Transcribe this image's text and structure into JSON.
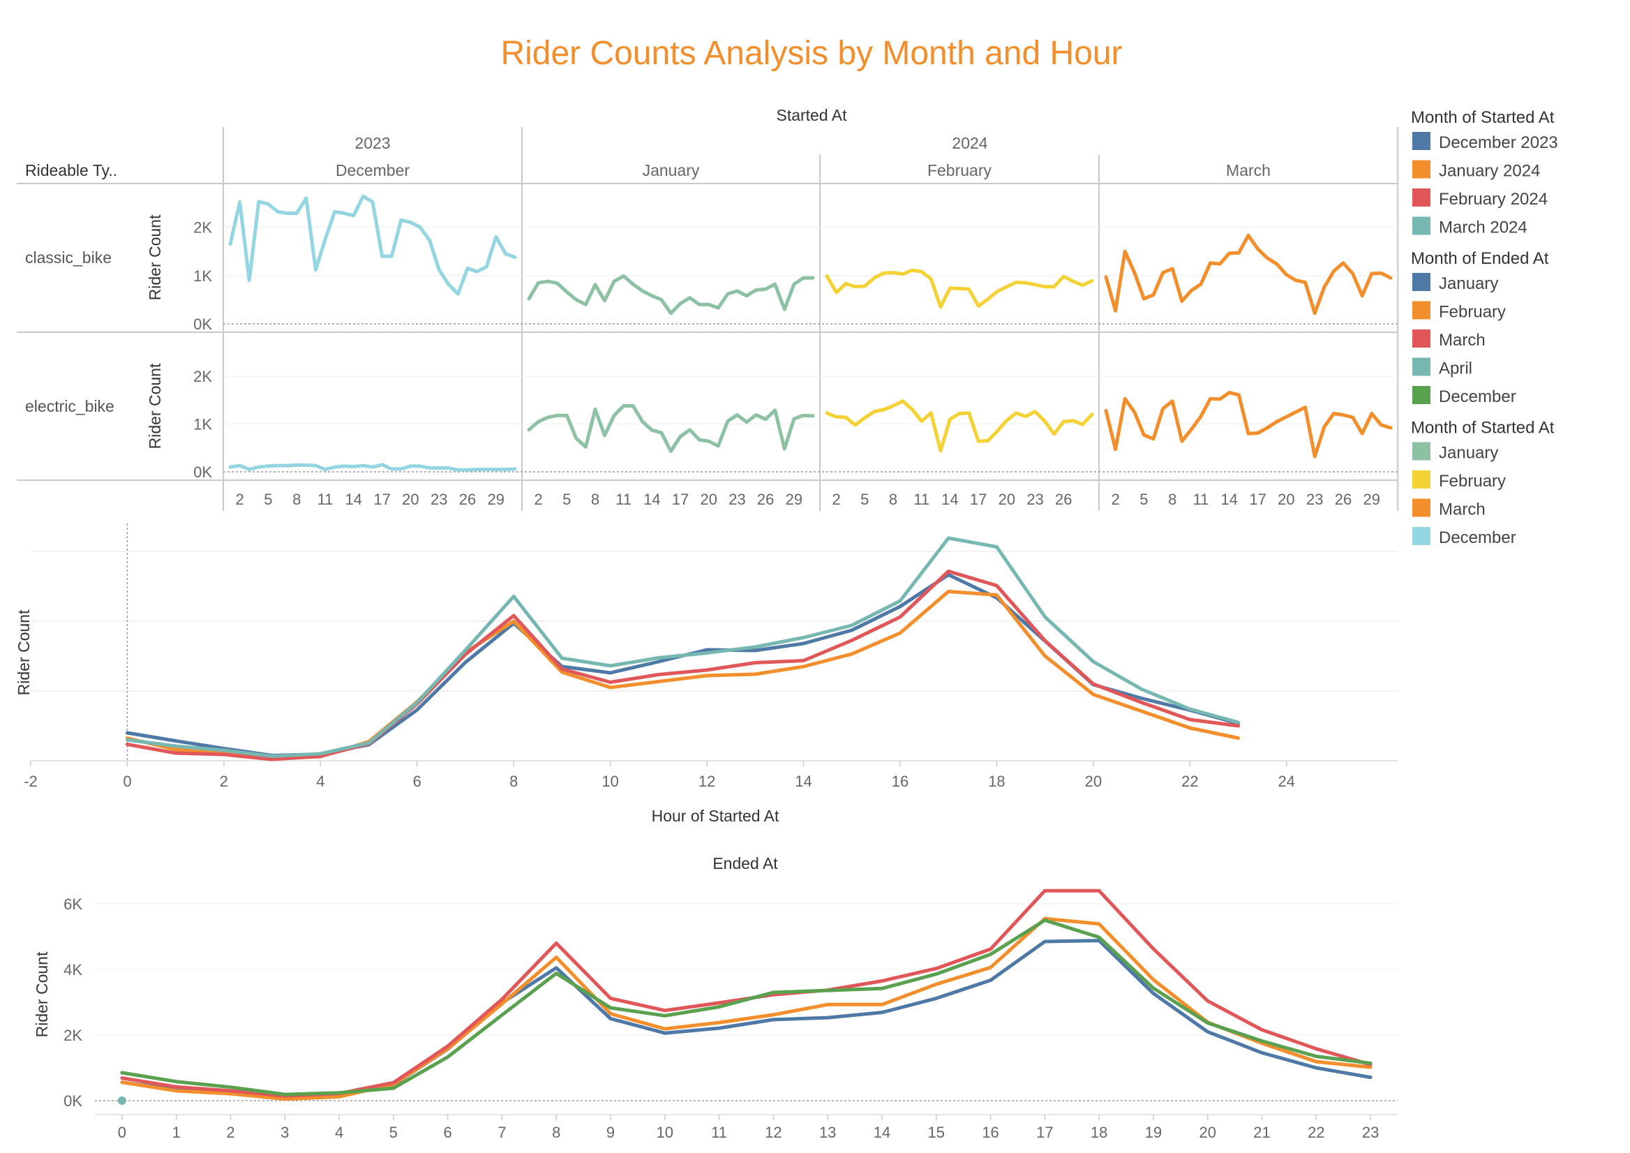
{
  "title": "Rider Counts Analysis by Month and Hour",
  "colors": {
    "title": "#F28E2B",
    "blue": "#4E79A7",
    "orange": "#F28E2B",
    "red": "#E15759",
    "teal": "#76B7B2",
    "green": "#59A14F",
    "sage": "#8CC1A3",
    "yellow": "#F4D236",
    "lightblue": "#93D5E0"
  },
  "legends": [
    {
      "title": "Month of Started At",
      "items": [
        {
          "label": "December 2023",
          "color": "#4E79A7"
        },
        {
          "label": "January 2024",
          "color": "#F28E2B"
        },
        {
          "label": "February 2024",
          "color": "#E15759"
        },
        {
          "label": "March 2024",
          "color": "#76B7B2"
        }
      ]
    },
    {
      "title": "Month of Ended At",
      "items": [
        {
          "label": "January",
          "color": "#4E79A7"
        },
        {
          "label": "February",
          "color": "#F28E2B"
        },
        {
          "label": "March",
          "color": "#E15759"
        },
        {
          "label": "April",
          "color": "#76B7B2"
        },
        {
          "label": "December",
          "color": "#59A14F"
        }
      ]
    },
    {
      "title": "Month of Started At",
      "items": [
        {
          "label": "January",
          "color": "#8CC1A3"
        },
        {
          "label": "February",
          "color": "#F4D236"
        },
        {
          "label": "March",
          "color": "#F28E2B"
        },
        {
          "label": "December",
          "color": "#93D5E0"
        }
      ]
    }
  ],
  "chart_data": [
    {
      "type": "line",
      "title": "Started At",
      "row_header": "Rideable Ty..",
      "ylabel": "Rider Count",
      "ylim": [
        0,
        2600
      ],
      "yticks": [
        {
          "v": 0,
          "label": "0K"
        },
        {
          "v": 1000,
          "label": "1K"
        },
        {
          "v": 2000,
          "label": "2K"
        }
      ],
      "years": [
        {
          "label": "2023",
          "panels": [
            "December"
          ]
        },
        {
          "label": "2024",
          "panels": [
            "January",
            "February",
            "March"
          ]
        }
      ],
      "panels": [
        {
          "name": "December",
          "days": 31,
          "color": "#93D5E0",
          "xticks": [
            2,
            5,
            8,
            11,
            14,
            17,
            20,
            23,
            26,
            29
          ]
        },
        {
          "name": "January",
          "days": 31,
          "color": "#8CC1A3",
          "xticks": [
            2,
            5,
            8,
            11,
            14,
            17,
            20,
            23,
            26,
            29
          ]
        },
        {
          "name": "February",
          "days": 29,
          "color": "#F4D236",
          "xticks": [
            2,
            5,
            8,
            11,
            14,
            17,
            20,
            23,
            26
          ]
        },
        {
          "name": "March",
          "days": 31,
          "color": "#F28E2B",
          "xticks": [
            2,
            5,
            8,
            11,
            14,
            17,
            20,
            23,
            26,
            29
          ]
        }
      ],
      "rows": [
        {
          "name": "classic_bike",
          "series": {
            "December": [
              1650,
              2520,
              900,
              2530,
              2480,
              2320,
              2290,
              2290,
              2600,
              1120,
              1750,
              2320,
              2290,
              2240,
              2640,
              2520,
              1400,
              1400,
              2150,
              2100,
              2000,
              1730,
              1120,
              820,
              620,
              1150,
              1080,
              1180,
              1800,
              1450,
              1380
            ],
            "January": [
              520,
              850,
              880,
              840,
              660,
              500,
              400,
              810,
              480,
              880,
              990,
              820,
              680,
              580,
              500,
              220,
              420,
              540,
              400,
              400,
              330,
              620,
              680,
              580,
              700,
              720,
              820,
              300,
              820,
              950,
              950
            ],
            "February": [
              990,
              650,
              830,
              770,
              780,
              950,
              1050,
              1060,
              1030,
              1110,
              1080,
              930,
              350,
              740,
              730,
              720,
              370,
              510,
              670,
              770,
              860,
              850,
              810,
              770,
              770,
              980,
              880,
              800,
              890
            ],
            "March": [
              970,
              270,
              1500,
              1060,
              520,
              600,
              1060,
              1140,
              470,
              690,
              820,
              1260,
              1240,
              1460,
              1470,
              1830,
              1550,
              1360,
              1240,
              1020,
              900,
              860,
              220,
              760,
              1090,
              1260,
              1040,
              580,
              1040,
              1050,
              950
            ]
          }
        },
        {
          "name": "electric_bike",
          "series": {
            "December": [
              100,
              130,
              50,
              100,
              120,
              130,
              130,
              140,
              140,
              130,
              50,
              100,
              120,
              110,
              130,
              100,
              150,
              60,
              60,
              120,
              120,
              80,
              80,
              80,
              40,
              40,
              50,
              50,
              50,
              50,
              60
            ],
            "January": [
              880,
              1050,
              1140,
              1180,
              1180,
              700,
              520,
              1310,
              760,
              1180,
              1380,
              1380,
              1050,
              870,
              820,
              430,
              740,
              880,
              670,
              640,
              540,
              1060,
              1190,
              1040,
              1190,
              1100,
              1290,
              480,
              1110,
              1180,
              1170
            ],
            "February": [
              1230,
              1150,
              1140,
              980,
              1130,
              1260,
              1300,
              1380,
              1480,
              1310,
              1060,
              1230,
              440,
              1100,
              1220,
              1230,
              640,
              650,
              850,
              1080,
              1230,
              1160,
              1260,
              1060,
              790,
              1050,
              1070,
              990,
              1200
            ],
            "March": [
              1280,
              470,
              1530,
              1250,
              770,
              690,
              1320,
              1480,
              640,
              890,
              1160,
              1530,
              1520,
              1660,
              1610,
              800,
              810,
              920,
              1050,
              1150,
              1250,
              1350,
              320,
              940,
              1220,
              1190,
              1140,
              800,
              1220,
              980,
              920
            ]
          }
        }
      ]
    },
    {
      "type": "line",
      "xlabel": "Hour of Started At",
      "ylabel": "Rider Count",
      "xlim": [
        -2,
        25
      ],
      "xticks": [
        -2,
        0,
        2,
        4,
        6,
        8,
        10,
        12,
        14,
        16,
        18,
        20,
        22,
        24
      ],
      "ylim": [
        0,
        6600
      ],
      "series": [
        {
          "name": "December 2023",
          "color": "#4E79A7",
          "values": [
            800,
            570,
            350,
            150,
            190,
            460,
            1460,
            2820,
            3940,
            2700,
            2520,
            2840,
            3180,
            3160,
            3360,
            3740,
            4420,
            5330,
            4670,
            3430,
            2180,
            1790,
            1450,
            1070
          ]
        },
        {
          "name": "January 2024",
          "color": "#F28E2B",
          "values": [
            650,
            320,
            230,
            60,
            120,
            550,
            1690,
            3100,
            4000,
            2540,
            2100,
            2270,
            2440,
            2480,
            2700,
            3060,
            3660,
            4850,
            4750,
            3000,
            1900,
            1420,
            940,
            650
          ]
        },
        {
          "name": "February 2024",
          "color": "#E15759",
          "values": [
            470,
            220,
            180,
            40,
            130,
            490,
            1630,
            3050,
            4160,
            2630,
            2250,
            2470,
            2600,
            2810,
            2870,
            3450,
            4120,
            5430,
            5020,
            3440,
            2200,
            1670,
            1180,
            1000
          ]
        },
        {
          "name": "March 2024",
          "color": "#76B7B2",
          "values": [
            600,
            420,
            300,
            130,
            200,
            510,
            1670,
            3170,
            4710,
            2940,
            2720,
            2950,
            3090,
            3260,
            3530,
            3880,
            4580,
            6380,
            6130,
            4120,
            2840,
            2050,
            1480,
            1100
          ]
        }
      ]
    },
    {
      "type": "line",
      "title": "Ended At",
      "ylabel": "Rider Count",
      "xlim": [
        -0.5,
        23.5
      ],
      "xticks": [
        0,
        1,
        2,
        3,
        4,
        5,
        6,
        7,
        8,
        9,
        10,
        11,
        12,
        13,
        14,
        15,
        16,
        17,
        18,
        19,
        20,
        21,
        22,
        23
      ],
      "ylim": [
        0,
        6600
      ],
      "yticks": [
        {
          "v": 0,
          "label": "0K"
        },
        {
          "v": 2000,
          "label": "2K"
        },
        {
          "v": 4000,
          "label": "4K"
        },
        {
          "v": 6000,
          "label": "6K"
        }
      ],
      "series": [
        {
          "name": "January",
          "color": "#4E79A7",
          "values": [
            560,
            330,
            270,
            90,
            200,
            490,
            1570,
            2980,
            4050,
            2500,
            2060,
            2210,
            2470,
            2530,
            2690,
            3120,
            3670,
            4850,
            4880,
            3270,
            2100,
            1460,
            1000,
            710
          ]
        },
        {
          "name": "February",
          "color": "#F28E2B",
          "values": [
            560,
            300,
            210,
            50,
            120,
            500,
            1580,
            2950,
            4370,
            2650,
            2190,
            2380,
            2620,
            2930,
            2930,
            3550,
            4060,
            5550,
            5390,
            3690,
            2390,
            1750,
            1190,
            1020
          ]
        },
        {
          "name": "March",
          "color": "#E15759",
          "values": [
            690,
            420,
            300,
            140,
            220,
            550,
            1660,
            3090,
            4800,
            3120,
            2750,
            2980,
            3230,
            3370,
            3650,
            4030,
            4620,
            6400,
            6400,
            4630,
            3040,
            2160,
            1580,
            1100
          ]
        },
        {
          "name": "December",
          "color": "#59A14F",
          "values": [
            850,
            580,
            410,
            190,
            240,
            380,
            1330,
            2610,
            3880,
            2830,
            2590,
            2860,
            3300,
            3360,
            3420,
            3860,
            4460,
            5500,
            4980,
            3430,
            2370,
            1820,
            1350,
            1140
          ]
        },
        {
          "name": "April",
          "color": "#76B7B2",
          "values": [
            0
          ]
        }
      ]
    }
  ]
}
